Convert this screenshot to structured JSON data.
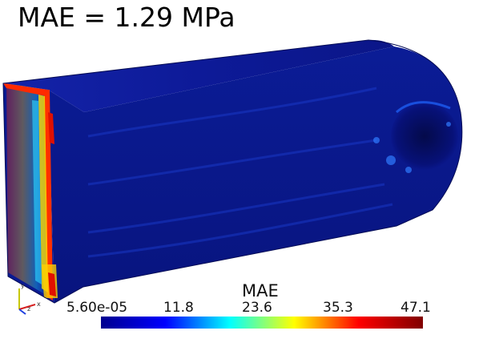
{
  "figure": {
    "title": "MAE = 1.29 MPa"
  },
  "colorbar": {
    "title": "MAE",
    "ticks": [
      "5.60e-05",
      "11.8",
      "23.6",
      "35.3",
      "47.1"
    ],
    "range": [
      5.6e-05,
      47.1
    ],
    "colors": [
      "#00008f",
      "#0000ff",
      "#00ffff",
      "#ffff00",
      "#ff0000",
      "#800000"
    ]
  },
  "model": {
    "base_color": "#0a1690",
    "outline_color": "#050c55"
  },
  "axes": {
    "labels": [
      "y",
      "z",
      "x"
    ]
  }
}
